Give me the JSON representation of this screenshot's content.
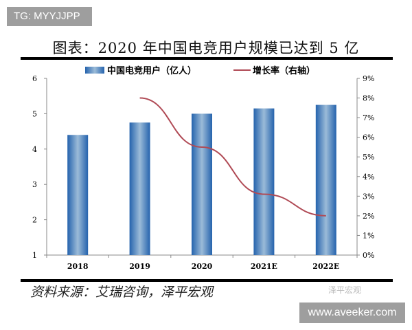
{
  "watermark_top": "TG: MYYJJPP",
  "watermark_bottom": "www.aveeker.com",
  "watermark_wechat": "泽平宏观",
  "source": "资料来源：艾瑞咨询，泽平宏观",
  "chart_data": {
    "type": "bar+line",
    "title": "图表：2020 年中国电竞用户规模已达到 5 亿",
    "categories": [
      "2018",
      "2019",
      "2020",
      "2021E",
      "2022E"
    ],
    "series": [
      {
        "name": "中国电竞用户（亿人）",
        "type": "bar",
        "axis": "left",
        "color": "#2e6db4",
        "values": [
          4.4,
          4.75,
          5.0,
          5.15,
          5.25
        ]
      },
      {
        "name": "增长率（右轴）",
        "type": "line",
        "axis": "right",
        "color": "#b04a55",
        "values": [
          null,
          8.0,
          5.5,
          3.1,
          2.0
        ]
      }
    ],
    "ylim_left": [
      1,
      6
    ],
    "yticks_left": [
      "1",
      "2",
      "3",
      "4",
      "5",
      "6"
    ],
    "ylim_right": [
      0,
      9
    ],
    "yticks_right": [
      "0%",
      "1%",
      "2%",
      "3%",
      "4%",
      "5%",
      "6%",
      "7%",
      "8%",
      "9%"
    ],
    "legend": "top",
    "grid": false
  }
}
